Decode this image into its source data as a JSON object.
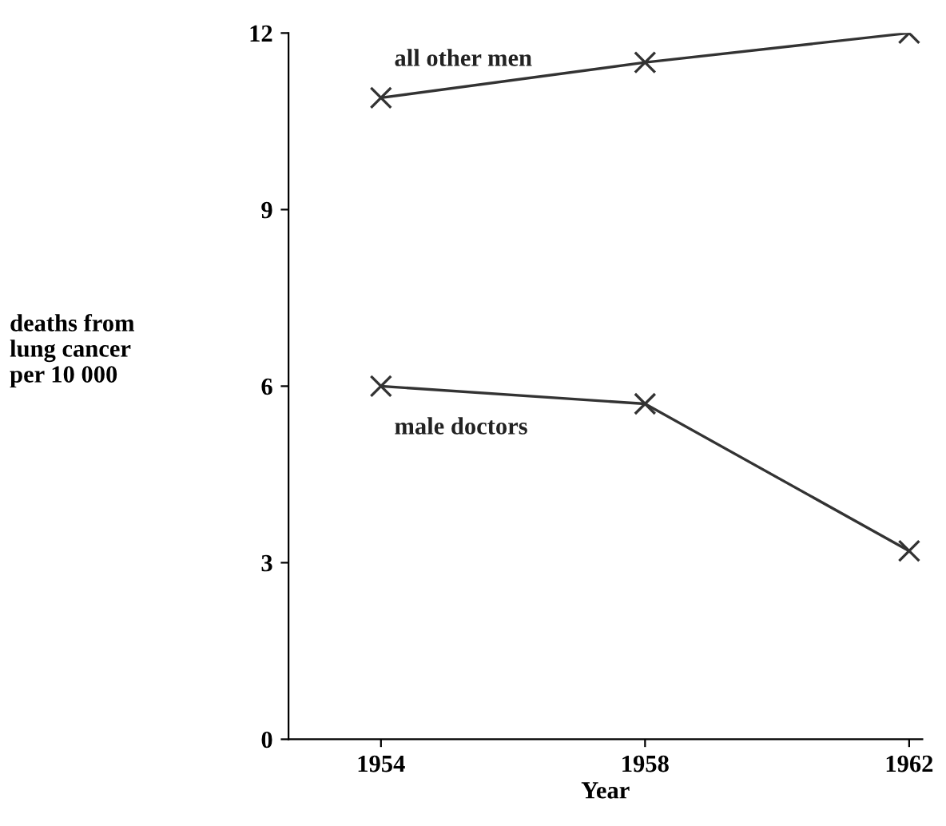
{
  "chart_data": {
    "type": "line",
    "xlabel": "Year",
    "ylabel": "deaths from\nlung cancer\nper 10 000",
    "x": [
      1954,
      1958,
      1962
    ],
    "series": [
      {
        "name": "all other men",
        "color": "#333333",
        "values": [
          10.9,
          11.5,
          12.0
        ]
      },
      {
        "name": "male doctors",
        "color": "#333333",
        "values": [
          6.0,
          5.7,
          3.2
        ]
      }
    ],
    "xlim": [
      1952.6,
      1962.2
    ],
    "xticks": [
      1954,
      1958,
      1962
    ],
    "ylim": [
      0,
      12
    ],
    "yticks": [
      0,
      3,
      6,
      9,
      12
    ],
    "grid": false,
    "legend": false,
    "marker": "cross",
    "line_style": "solid"
  }
}
